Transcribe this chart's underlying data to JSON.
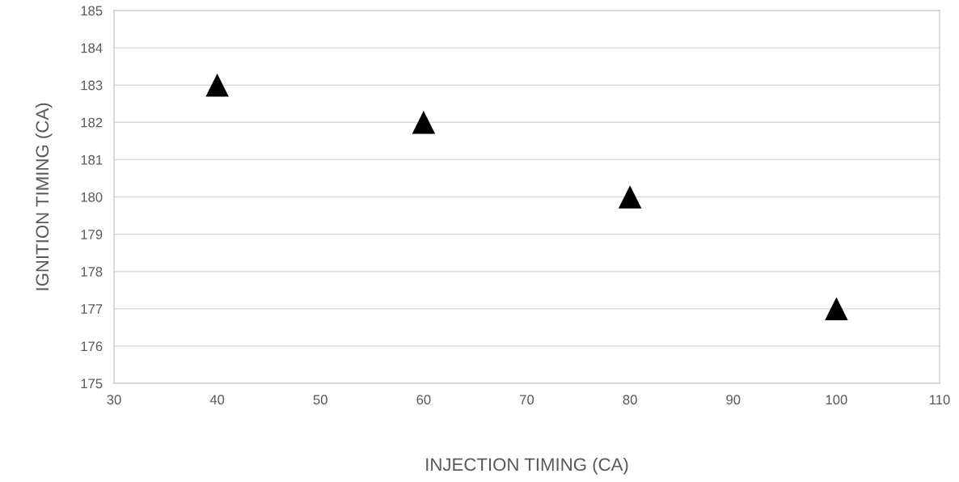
{
  "chart_data": {
    "type": "scatter",
    "xlabel": "INJECTION TIMING (CA)",
    "ylabel": "IGNITION TIMING (CA)",
    "x": [
      40,
      60,
      80,
      100
    ],
    "series": [
      {
        "color": "#000000",
        "values": [
          183,
          182,
          180,
          177
        ]
      }
    ],
    "xlim": [
      30,
      110
    ],
    "xticks": [
      30,
      40,
      50,
      60,
      70,
      80,
      90,
      100,
      110
    ],
    "ylim": [
      175,
      185
    ],
    "yticks": [
      175,
      176,
      177,
      178,
      179,
      180,
      181,
      182,
      183,
      184,
      185
    ],
    "grid": "y",
    "marker": "triangle",
    "legend": false
  }
}
